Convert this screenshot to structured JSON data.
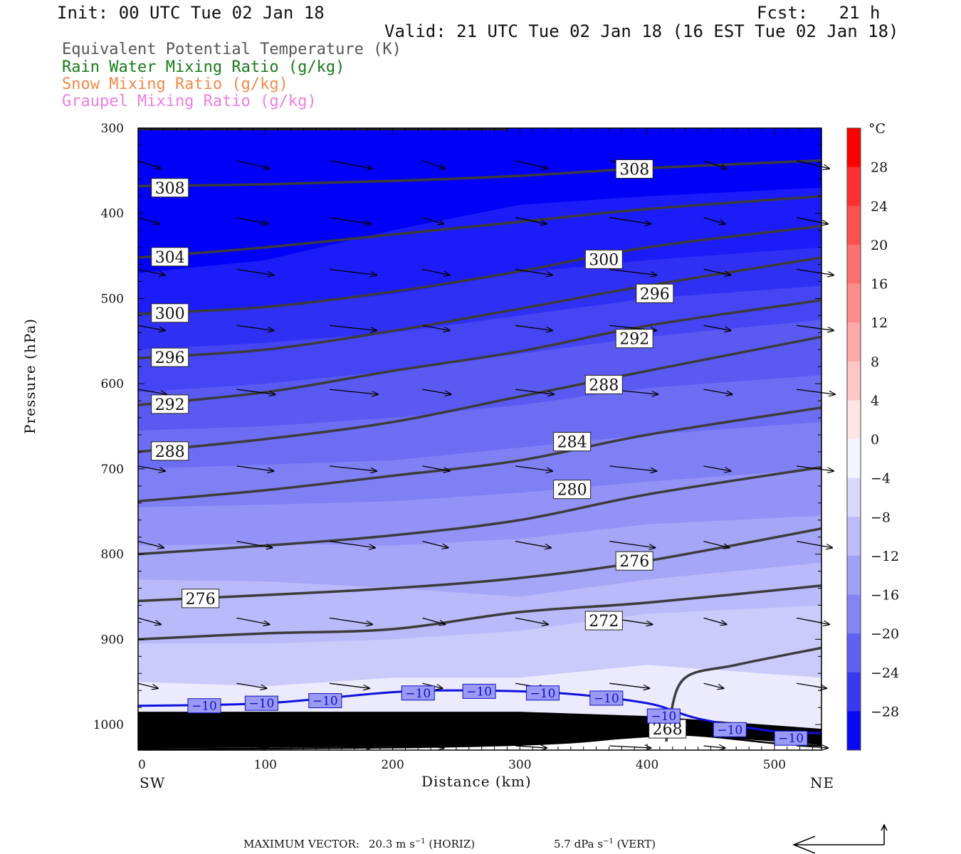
{
  "header": {
    "init": "Init: 00 UTC Tue 02 Jan 18",
    "fcst": "Fcst:   21 h",
    "valid": "Valid: 21 UTC Tue 02 Jan 18 (16 EST Tue 02 Jan 18)"
  },
  "legend": [
    {
      "label": "Equivalent Potential Temperature (K)",
      "color": "#555555"
    },
    {
      "label": "Rain Water Mixing Ratio (g/kg)",
      "color": "#1a7a1a"
    },
    {
      "label": "Snow Mixing Ratio (g/kg)",
      "color": "#f08a4b"
    },
    {
      "label": "Graupel Mixing Ratio (g/kg)",
      "color": "#f07de0"
    }
  ],
  "colors": {
    "theta_e_line": "#3c3c3c",
    "isotherm_line": "#1010dd",
    "arrow": "#000000"
  },
  "chart_data": {
    "type": "contour",
    "xlabel": "Distance (km)",
    "ylabel": "Pressure (hPa)",
    "x_ticks": [
      0,
      100,
      200,
      300,
      400,
      500
    ],
    "y_ticks": [
      300,
      400,
      500,
      600,
      700,
      800,
      900,
      1000
    ],
    "xlim": [
      0,
      537
    ],
    "ylim": [
      1030,
      300
    ],
    "left_end_label": "SW",
    "right_end_label": "NE",
    "theta_e_contours": [
      {
        "level": "308",
        "points": [
          [
            0,
            368
          ],
          [
            100,
            366
          ],
          [
            200,
            362
          ],
          [
            300,
            356
          ],
          [
            400,
            347
          ],
          [
            537,
            338
          ]
        ],
        "labels": [
          [
            25,
            370
          ],
          [
            390,
            348
          ]
        ]
      },
      {
        "level": "304",
        "points": [
          [
            0,
            452
          ],
          [
            100,
            440
          ],
          [
            200,
            425
          ],
          [
            300,
            410
          ],
          [
            400,
            395
          ],
          [
            537,
            380
          ]
        ],
        "labels": [
          [
            25,
            451
          ]
        ]
      },
      {
        "level": "300",
        "points": [
          [
            0,
            518
          ],
          [
            100,
            510
          ],
          [
            200,
            492
          ],
          [
            300,
            468
          ],
          [
            400,
            440
          ],
          [
            537,
            415
          ]
        ],
        "labels": [
          [
            25,
            517
          ],
          [
            366,
            454
          ]
        ]
      },
      {
        "level": "296",
        "points": [
          [
            0,
            570
          ],
          [
            100,
            560
          ],
          [
            200,
            538
          ],
          [
            300,
            512
          ],
          [
            400,
            485
          ],
          [
            537,
            452
          ]
        ],
        "labels": [
          [
            25,
            569
          ],
          [
            406,
            494
          ]
        ]
      },
      {
        "level": "292",
        "points": [
          [
            0,
            625
          ],
          [
            100,
            610
          ],
          [
            200,
            585
          ],
          [
            300,
            562
          ],
          [
            400,
            532
          ],
          [
            537,
            502
          ]
        ],
        "labels": [
          [
            25,
            624
          ],
          [
            390,
            547
          ]
        ]
      },
      {
        "level": "288",
        "points": [
          [
            0,
            680
          ],
          [
            100,
            665
          ],
          [
            200,
            645
          ],
          [
            300,
            615
          ],
          [
            400,
            585
          ],
          [
            537,
            545
          ]
        ],
        "labels": [
          [
            25,
            679
          ],
          [
            366,
            601
          ]
        ]
      },
      {
        "level": "284",
        "points": [
          [
            0,
            738
          ],
          [
            100,
            725
          ],
          [
            200,
            708
          ],
          [
            300,
            690
          ],
          [
            400,
            660
          ],
          [
            537,
            628
          ]
        ],
        "labels": [
          [
            341,
            668
          ]
        ]
      },
      {
        "level": "280",
        "points": [
          [
            0,
            800
          ],
          [
            100,
            790
          ],
          [
            200,
            778
          ],
          [
            300,
            760
          ],
          [
            400,
            730
          ],
          [
            537,
            698
          ]
        ],
        "labels": [
          [
            341,
            724
          ]
        ]
      },
      {
        "level": "276",
        "points": [
          [
            0,
            855
          ],
          [
            100,
            848
          ],
          [
            200,
            840
          ],
          [
            300,
            828
          ],
          [
            400,
            808
          ],
          [
            537,
            770
          ]
        ],
        "labels": [
          [
            49,
            852
          ],
          [
            390,
            808
          ]
        ]
      },
      {
        "level": "272",
        "points": [
          [
            0,
            900
          ],
          [
            100,
            893
          ],
          [
            200,
            888
          ],
          [
            300,
            868
          ],
          [
            400,
            857
          ],
          [
            537,
            837
          ]
        ],
        "labels": [
          [
            366,
            878
          ]
        ]
      },
      {
        "level": "268",
        "points": [
          [
            415,
            1020
          ],
          [
            418,
            990
          ],
          [
            430,
            945
          ],
          [
            470,
            930
          ],
          [
            537,
            910
          ]
        ],
        "labels": [
          [
            416,
            1005
          ]
        ]
      }
    ],
    "isotherm_minus10": {
      "level": "−10",
      "points": [
        [
          0,
          978
        ],
        [
          100,
          975
        ],
        [
          200,
          962
        ],
        [
          260,
          960
        ],
        [
          330,
          963
        ],
        [
          400,
          975
        ],
        [
          440,
          993
        ],
        [
          500,
          1008
        ],
        [
          537,
          1010
        ]
      ],
      "labels": [
        [
          52,
          978
        ],
        [
          97,
          975
        ],
        [
          147,
          972
        ],
        [
          220,
          963
        ],
        [
          268,
          961
        ],
        [
          318,
          963
        ],
        [
          368,
          969
        ],
        [
          413,
          990
        ],
        [
          465,
          1006
        ],
        [
          513,
          1016
        ]
      ]
    },
    "colorbar": {
      "unit": "°C",
      "min": -32,
      "max": 32,
      "tick_labels": [
        "28",
        "24",
        "20",
        "16",
        "12",
        "8",
        "4",
        "0",
        "−4",
        "−8",
        "−12",
        "−16",
        "−20",
        "−24",
        "−28"
      ]
    },
    "footer": {
      "max_vector_label": "MAXIMUM VECTOR:",
      "horiz": "20.3 m s",
      "horiz_suffix": " (HORIZ)",
      "vert": "5.7 dPa s",
      "vert_suffix": " (VERT)",
      "exponent": "−1"
    }
  }
}
